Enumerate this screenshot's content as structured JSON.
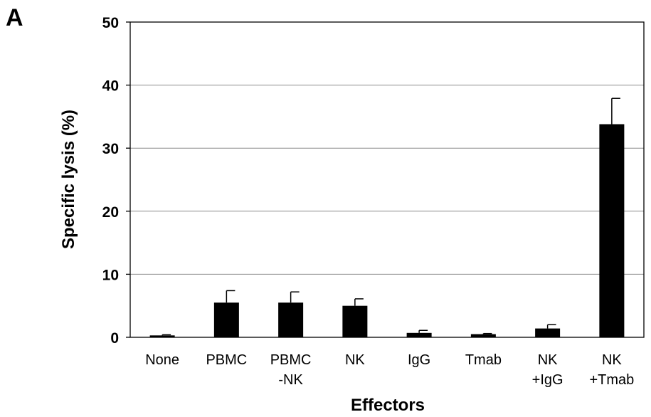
{
  "panel_label": "A",
  "chart_data": {
    "type": "bar",
    "title": "",
    "xlabel": "Effectors",
    "ylabel": "Specific lysis (%)",
    "ylim": [
      0,
      50
    ],
    "yticks": [
      0,
      10,
      20,
      30,
      40,
      50
    ],
    "grid": true,
    "categories": [
      [
        "None"
      ],
      [
        "PBMC"
      ],
      [
        "PBMC",
        "-NK"
      ],
      [
        "NK"
      ],
      [
        "IgG"
      ],
      [
        "Tmab"
      ],
      [
        "NK",
        "+IgG"
      ],
      [
        "NK",
        "+Tmab"
      ]
    ],
    "series": [
      {
        "values": [
          0.3,
          5.5,
          5.5,
          5.0,
          0.7,
          0.5,
          1.4,
          33.8
        ],
        "error": [
          0.1,
          1.9,
          1.7,
          1.1,
          0.4,
          0.1,
          0.6,
          4.1
        ],
        "color": "#000000"
      }
    ]
  }
}
